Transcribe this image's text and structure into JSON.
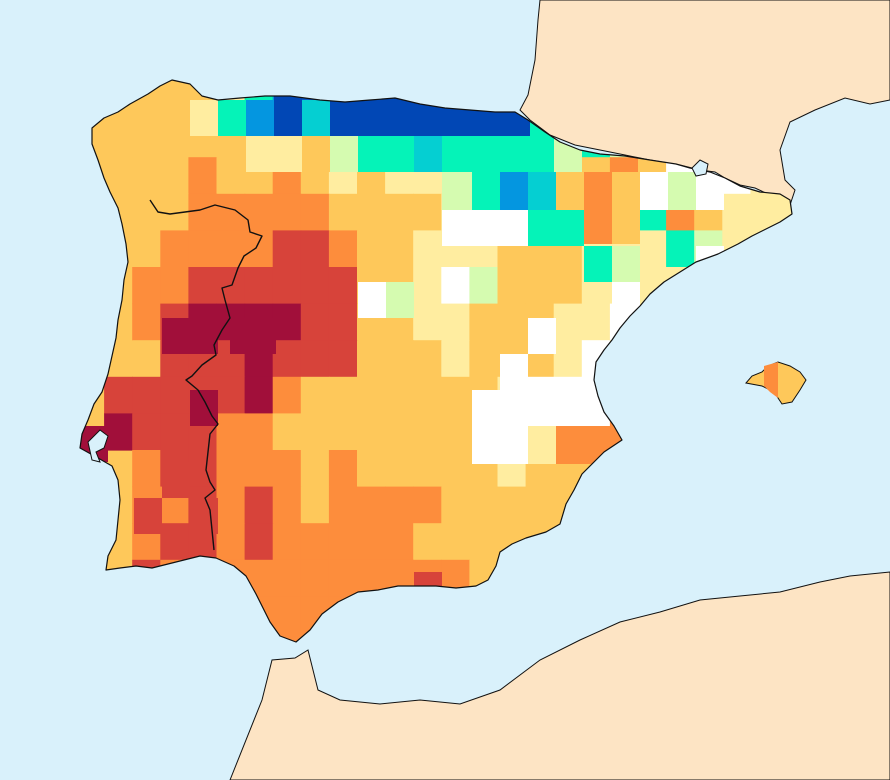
{
  "map": {
    "colors": {
      "sea": "#d9f1fb",
      "land_outside": "#fde4c4",
      "white": "#ffffff",
      "very_light": "#ffeda0",
      "light_orange": "#fec85a",
      "orange": "#fd8d3c",
      "red": "#d7433a",
      "dark_red": "#a10f3a",
      "pale_green": "#d5fbb0",
      "teal": "#05f3b8",
      "cyan": "#05cfd2",
      "light_blue": "#0496e0",
      "blue": "#0456c6",
      "dark_blue": "#0147b5"
    },
    "legend": [
      "white",
      "very_light",
      "light_orange",
      "orange",
      "red",
      "dark_red",
      "pale_green",
      "teal",
      "cyan",
      "light_blue",
      "blue",
      "dark_blue"
    ]
  }
}
